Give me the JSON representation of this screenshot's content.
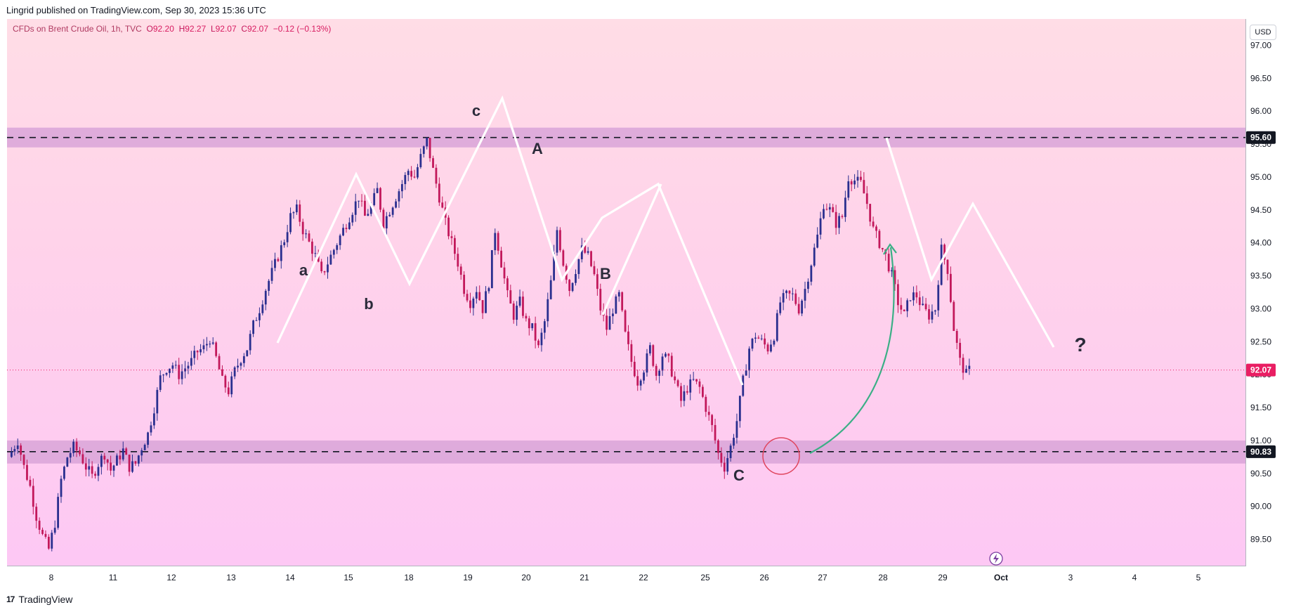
{
  "header": {
    "publisher_line": "Lingrid published on TradingView.com, Sep 30, 2023 15:36 UTC"
  },
  "legend": {
    "symbol": "CFDs on Brent Crude Oil, 1h, TVC",
    "open_label": "O",
    "open": "92.20",
    "high_label": "H",
    "high": "92.27",
    "low_label": "L",
    "low": "92.07",
    "close_label": "C",
    "close": "92.07",
    "change": "−0.12 (−0.13%)"
  },
  "currency": "USD",
  "footer": {
    "logo": "17",
    "brand": "TradingView"
  },
  "colors": {
    "bull": "#2a2f8f",
    "bear": "#c2185b",
    "zone": "#d9a4d8",
    "wave": "#ffffff",
    "arrow": "#3aaf85",
    "circle": "#e0455e",
    "last_price_tag": "#e91e63",
    "level_tag": "#131722"
  },
  "chart_data": {
    "type": "candlestick",
    "symbol": "CFDs on Brent Crude Oil",
    "interval": "1h",
    "ylim": [
      89.1,
      97.4
    ],
    "y_ticks": [
      "89.50",
      "90.00",
      "90.50",
      "91.00",
      "91.50",
      "92.00",
      "92.50",
      "93.00",
      "93.50",
      "94.00",
      "94.50",
      "95.00",
      "95.50",
      "96.00",
      "96.50",
      "97.00"
    ],
    "x_ticks": [
      "8",
      "11",
      "12",
      "13",
      "14",
      "15",
      "18",
      "19",
      "20",
      "21",
      "22",
      "25",
      "26",
      "27",
      "28",
      "29",
      "Oct",
      "3",
      "4",
      "5"
    ],
    "price_path": [
      [
        0,
        90.75
      ],
      [
        3,
        91.0
      ],
      [
        5,
        90.6
      ],
      [
        7,
        90.3
      ],
      [
        9,
        89.85
      ],
      [
        11,
        89.55
      ],
      [
        13,
        89.35
      ],
      [
        15,
        89.75
      ],
      [
        17,
        90.4
      ],
      [
        19,
        90.75
      ],
      [
        21,
        90.9
      ],
      [
        23,
        90.8
      ],
      [
        25,
        90.6
      ],
      [
        27,
        90.45
      ],
      [
        29,
        90.65
      ],
      [
        31,
        90.8
      ],
      [
        33,
        90.55
      ],
      [
        35,
        90.7
      ],
      [
        37,
        90.85
      ],
      [
        39,
        90.6
      ],
      [
        41,
        90.65
      ],
      [
        43,
        90.9
      ],
      [
        45,
        91.1
      ],
      [
        47,
        91.5
      ],
      [
        49,
        91.95
      ],
      [
        51,
        92.1
      ],
      [
        53,
        92.15
      ],
      [
        55,
        92.0
      ],
      [
        57,
        92.1
      ],
      [
        59,
        92.2
      ],
      [
        61,
        92.35
      ],
      [
        63,
        92.4
      ],
      [
        65,
        92.55
      ],
      [
        67,
        92.25
      ],
      [
        69,
        91.9
      ],
      [
        71,
        91.75
      ],
      [
        73,
        92.05
      ],
      [
        75,
        92.25
      ],
      [
        77,
        92.4
      ],
      [
        79,
        92.75
      ],
      [
        81,
        93.0
      ],
      [
        83,
        93.3
      ],
      [
        85,
        93.55
      ],
      [
        87,
        93.8
      ],
      [
        89,
        94.05
      ],
      [
        91,
        94.4
      ],
      [
        93,
        94.5
      ],
      [
        95,
        94.2
      ],
      [
        97,
        94.0
      ],
      [
        99,
        93.8
      ],
      [
        101,
        93.5
      ],
      [
        103,
        93.7
      ],
      [
        105,
        93.9
      ],
      [
        107,
        94.1
      ],
      [
        109,
        94.3
      ],
      [
        111,
        94.5
      ],
      [
        113,
        94.7
      ],
      [
        115,
        94.4
      ],
      [
        117,
        94.55
      ],
      [
        119,
        94.8
      ],
      [
        121,
        94.3
      ],
      [
        123,
        94.5
      ],
      [
        125,
        94.7
      ],
      [
        127,
        94.9
      ],
      [
        129,
        95.1
      ],
      [
        131,
        95.0
      ],
      [
        133,
        95.3
      ],
      [
        135,
        95.55
      ],
      [
        137,
        95.1
      ],
      [
        139,
        94.7
      ],
      [
        141,
        94.3
      ],
      [
        143,
        94.0
      ],
      [
        145,
        93.7
      ],
      [
        147,
        93.3
      ],
      [
        149,
        93.1
      ],
      [
        151,
        93.3
      ],
      [
        153,
        93.0
      ],
      [
        155,
        93.4
      ],
      [
        157,
        94.2
      ],
      [
        159,
        93.7
      ],
      [
        161,
        93.2
      ],
      [
        163,
        92.9
      ],
      [
        165,
        93.1
      ],
      [
        167,
        92.8
      ],
      [
        169,
        92.7
      ],
      [
        171,
        92.4
      ],
      [
        173,
        92.8
      ],
      [
        175,
        93.4
      ],
      [
        177,
        94.2
      ],
      [
        179,
        93.7
      ],
      [
        181,
        93.3
      ],
      [
        183,
        93.6
      ],
      [
        185,
        93.9
      ],
      [
        187,
        93.8
      ],
      [
        189,
        93.5
      ],
      [
        191,
        93.0
      ],
      [
        193,
        92.7
      ],
      [
        195,
        93.0
      ],
      [
        197,
        93.2
      ],
      [
        199,
        92.6
      ],
      [
        201,
        92.2
      ],
      [
        203,
        91.9
      ],
      [
        205,
        92.1
      ],
      [
        207,
        92.4
      ],
      [
        209,
        92.0
      ],
      [
        211,
        92.3
      ],
      [
        213,
        92.2
      ],
      [
        215,
        91.9
      ],
      [
        217,
        91.6
      ],
      [
        219,
        91.8
      ],
      [
        221,
        91.9
      ],
      [
        223,
        91.8
      ],
      [
        225,
        91.5
      ],
      [
        227,
        91.2
      ],
      [
        229,
        90.8
      ],
      [
        231,
        90.6
      ],
      [
        233,
        90.9
      ],
      [
        235,
        91.3
      ],
      [
        237,
        91.9
      ],
      [
        239,
        92.4
      ],
      [
        241,
        92.6
      ],
      [
        243,
        92.5
      ],
      [
        245,
        92.4
      ],
      [
        247,
        92.6
      ],
      [
        249,
        93.1
      ],
      [
        251,
        93.2
      ],
      [
        253,
        93.2
      ],
      [
        255,
        93.0
      ],
      [
        257,
        93.3
      ],
      [
        259,
        93.7
      ],
      [
        261,
        94.1
      ],
      [
        263,
        94.6
      ],
      [
        265,
        94.5
      ],
      [
        267,
        94.3
      ],
      [
        269,
        94.4
      ],
      [
        271,
        95.0
      ],
      [
        273,
        94.95
      ],
      [
        275,
        94.9
      ],
      [
        277,
        94.6
      ],
      [
        279,
        94.2
      ],
      [
        281,
        94.0
      ],
      [
        283,
        93.8
      ],
      [
        285,
        93.5
      ],
      [
        287,
        93.1
      ],
      [
        289,
        92.9
      ],
      [
        291,
        93.2
      ],
      [
        293,
        93.2
      ],
      [
        295,
        93.0
      ],
      [
        297,
        92.9
      ],
      [
        299,
        93.0
      ],
      [
        301,
        93.9
      ],
      [
        303,
        93.6
      ],
      [
        305,
        92.7
      ],
      [
        307,
        92.2
      ],
      [
        309,
        92.0
      ],
      [
        310,
        92.07
      ]
    ],
    "zones": [
      {
        "from": 95.45,
        "to": 95.75,
        "level": "95.60"
      },
      {
        "from": 90.65,
        "to": 91.0,
        "level": "90.83"
      }
    ],
    "last_price": "92.07",
    "wave_lines": [
      [
        [
          395,
          488
        ],
        [
          507,
          248
        ],
        [
          583,
          404
        ],
        [
          715,
          140
        ],
        [
          800,
          398
        ],
        [
          857,
          310
        ],
        [
          937,
          262
        ],
        [
          1057,
          548
        ]
      ],
      [
        [
          858,
          448
        ],
        [
          941,
          262
        ]
      ],
      [
        [
          1262,
          196
        ],
        [
          1326,
          398
        ],
        [
          1385,
          290
        ],
        [
          1500,
          494
        ]
      ]
    ],
    "wave_labels": [
      "a",
      "b",
      "c",
      "A",
      "B",
      "C",
      "?"
    ],
    "chart_type_note": "candles with Elliott-style wave annotation, horizontal support/resistance zones"
  }
}
